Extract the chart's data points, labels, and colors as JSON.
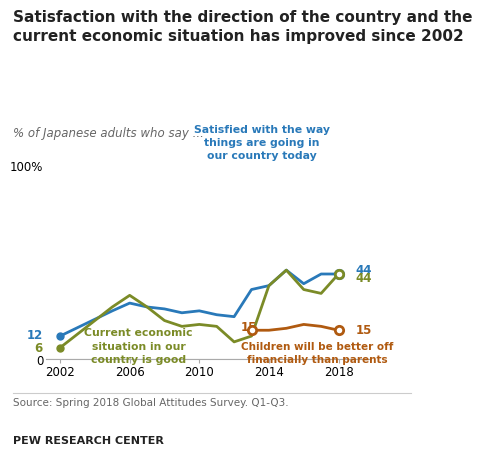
{
  "title": "Satisfaction with the direction of the country and the\ncurrent economic situation has improved since 2002",
  "subtitle": "% of Japanese adults who say ...",
  "source": "Source: Spring 2018 Global Attitudes Survey. Q1-Q3.",
  "footer": "PEW RESEARCH CENTER",
  "blue_line": {
    "label": "Satisfied with the way\nthings are going in\nour country today",
    "color": "#2979B9",
    "years": [
      2002,
      2005,
      2006,
      2007,
      2008,
      2009,
      2010,
      2011,
      2012,
      2013,
      2014,
      2015,
      2016,
      2017,
      2018
    ],
    "values": [
      12,
      25,
      29,
      27,
      26,
      24,
      25,
      23,
      22,
      36,
      38,
      46,
      39,
      44,
      44
    ]
  },
  "green_line": {
    "label": "Current economic\nsituation in our\ncountry is good",
    "color": "#7B8B27",
    "years": [
      2002,
      2005,
      2006,
      2007,
      2008,
      2009,
      2010,
      2011,
      2012,
      2013,
      2014,
      2015,
      2016,
      2017,
      2018
    ],
    "values": [
      6,
      27,
      33,
      27,
      20,
      17,
      18,
      17,
      9,
      12,
      38,
      46,
      36,
      34,
      44
    ]
  },
  "brown_line": {
    "label": "Children will be better off\nfinancially than parents",
    "color": "#B05A10",
    "years": [
      2013,
      2014,
      2015,
      2016,
      2017,
      2018
    ],
    "values": [
      15,
      15,
      16,
      18,
      17,
      15
    ]
  },
  "ylim": [
    0,
    100
  ],
  "yticks": [
    0,
    100
  ],
  "xticks": [
    2002,
    2006,
    2010,
    2014,
    2018
  ],
  "background_color": "#FFFFFF",
  "title_fontsize": 11.0,
  "subtitle_fontsize": 8.5,
  "tick_fontsize": 8.5
}
